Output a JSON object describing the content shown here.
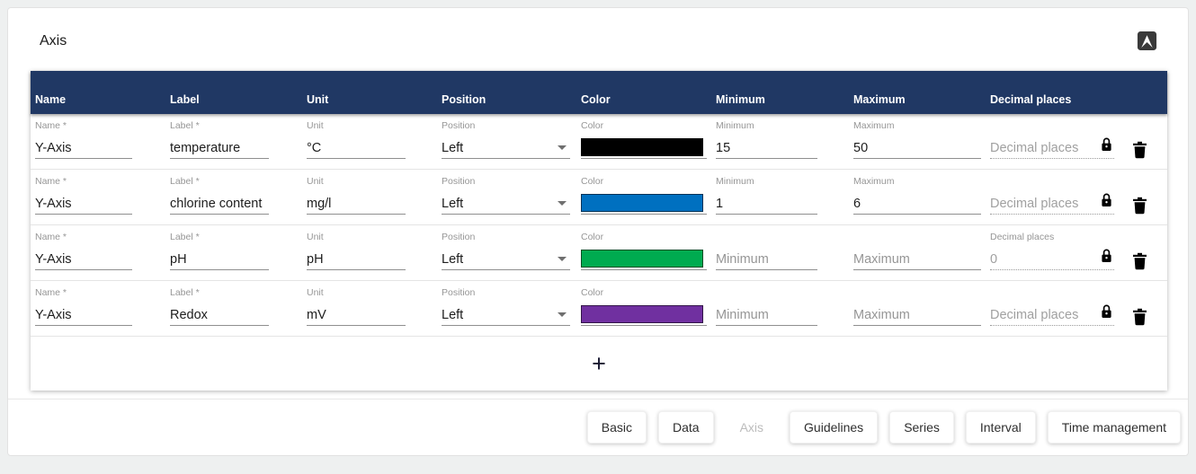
{
  "page": {
    "title": "Axis"
  },
  "colors": {
    "header_bg": "#203864",
    "page_bg": "#eef0f0",
    "underline": "#8f8f8f",
    "label_gray": "#969696"
  },
  "table": {
    "headers": [
      "Name",
      "Label",
      "Unit",
      "Position",
      "Color",
      "Minimum",
      "Maximum",
      "Decimal places"
    ],
    "add_button_label": "+",
    "rows": [
      {
        "fields": [
          {
            "field": "name",
            "type": "text",
            "label": "Name *",
            "value": "Y-Axis",
            "placeholder": ""
          },
          {
            "field": "label",
            "type": "text",
            "label": "Label *",
            "value": "temperature",
            "placeholder": ""
          },
          {
            "field": "unit",
            "type": "text",
            "label": "Unit",
            "value": "°C",
            "placeholder": ""
          },
          {
            "field": "position",
            "type": "select",
            "label": "Position",
            "value": "Left",
            "placeholder": ""
          },
          {
            "field": "color",
            "type": "color",
            "label": "Color",
            "value": "#000000",
            "placeholder": ""
          },
          {
            "field": "minimum",
            "type": "text",
            "label": "Minimum",
            "value": "15",
            "placeholder": ""
          },
          {
            "field": "maximum",
            "type": "text",
            "label": "Maximum",
            "value": "50",
            "placeholder": ""
          },
          {
            "field": "decimal-places",
            "type": "disabled",
            "label": "",
            "value": "",
            "placeholder": "Decimal places",
            "locked": true
          }
        ]
      },
      {
        "fields": [
          {
            "field": "name",
            "type": "text",
            "label": "Name *",
            "value": "Y-Axis",
            "placeholder": ""
          },
          {
            "field": "label",
            "type": "text",
            "label": "Label *",
            "value": "chlorine content",
            "placeholder": ""
          },
          {
            "field": "unit",
            "type": "text",
            "label": "Unit",
            "value": "mg/l",
            "placeholder": ""
          },
          {
            "field": "position",
            "type": "select",
            "label": "Position",
            "value": "Left",
            "placeholder": ""
          },
          {
            "field": "color",
            "type": "color",
            "label": "Color",
            "value": "#0070C0",
            "placeholder": ""
          },
          {
            "field": "minimum",
            "type": "text",
            "label": "Minimum",
            "value": "1",
            "placeholder": ""
          },
          {
            "field": "maximum",
            "type": "text",
            "label": "Maximum",
            "value": "6",
            "placeholder": ""
          },
          {
            "field": "decimal-places",
            "type": "disabled",
            "label": "",
            "value": "",
            "placeholder": "Decimal places",
            "locked": true
          }
        ]
      },
      {
        "fields": [
          {
            "field": "name",
            "type": "text",
            "label": "Name *",
            "value": "Y-Axis",
            "placeholder": ""
          },
          {
            "field": "label",
            "type": "text",
            "label": "Label *",
            "value": "pH",
            "placeholder": ""
          },
          {
            "field": "unit",
            "type": "text",
            "label": "Unit",
            "value": "pH",
            "placeholder": ""
          },
          {
            "field": "position",
            "type": "select",
            "label": "Position",
            "value": "Left",
            "placeholder": ""
          },
          {
            "field": "color",
            "type": "color",
            "label": "Color",
            "value": "#00AB50",
            "placeholder": ""
          },
          {
            "field": "minimum",
            "type": "text",
            "label": "",
            "value": "",
            "placeholder": "Minimum"
          },
          {
            "field": "maximum",
            "type": "text",
            "label": "",
            "value": "",
            "placeholder": "Maximum"
          },
          {
            "field": "decimal-places",
            "type": "disabled",
            "label": "Decimal places",
            "value": "0",
            "placeholder": "",
            "locked": true
          }
        ]
      },
      {
        "fields": [
          {
            "field": "name",
            "type": "text",
            "label": "Name *",
            "value": "Y-Axis",
            "placeholder": ""
          },
          {
            "field": "label",
            "type": "text",
            "label": "Label *",
            "value": "Redox",
            "placeholder": ""
          },
          {
            "field": "unit",
            "type": "text",
            "label": "Unit",
            "value": "mV",
            "placeholder": ""
          },
          {
            "field": "position",
            "type": "select",
            "label": "Position",
            "value": "Left",
            "placeholder": ""
          },
          {
            "field": "color",
            "type": "color",
            "label": "Color",
            "value": "#7030A0",
            "placeholder": ""
          },
          {
            "field": "minimum",
            "type": "text",
            "label": "",
            "value": "",
            "placeholder": "Minimum"
          },
          {
            "field": "maximum",
            "type": "text",
            "label": "",
            "value": "",
            "placeholder": "Maximum"
          },
          {
            "field": "decimal-places",
            "type": "disabled",
            "label": "",
            "value": "",
            "placeholder": "Decimal places",
            "locked": true
          }
        ]
      }
    ]
  },
  "footer": {
    "buttons": [
      {
        "label": "Basic",
        "enabled": true
      },
      {
        "label": "Data",
        "enabled": true
      },
      {
        "label": "Axis",
        "enabled": false
      },
      {
        "label": "Guidelines",
        "enabled": true
      },
      {
        "label": "Series",
        "enabled": true
      },
      {
        "label": "Interval",
        "enabled": true
      },
      {
        "label": "Time management",
        "enabled": true
      }
    ]
  }
}
